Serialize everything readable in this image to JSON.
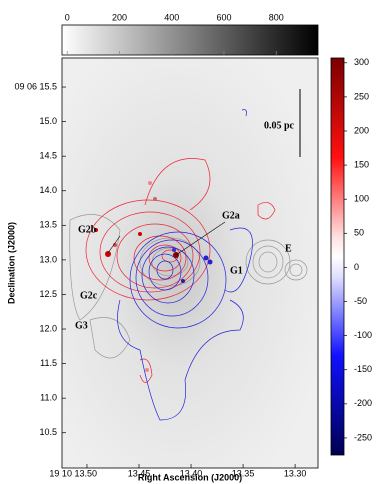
{
  "chart_data": {
    "type": "image",
    "x_label": "Right Ascension (J2000)",
    "y_label": "Declination (J2000)",
    "xlim": [
      13.524,
      13.278
    ],
    "xticks": [
      {
        "value": 13.5,
        "label": "19 10 13.50"
      },
      13.45,
      {
        "value": 13.4,
        "label": "13.40"
      },
      13.35,
      {
        "value": 13.3,
        "label": "13.30"
      }
    ],
    "ylim": [
      9.99,
      15.92
    ],
    "yticks": [
      {
        "value": 15.5,
        "label": "09 06 15.5"
      },
      {
        "value": 15,
        "label": "15.0"
      },
      14.5,
      {
        "value": 14,
        "label": "14.0"
      },
      13.5,
      {
        "value": 13,
        "label": "13.0"
      },
      12.5,
      {
        "value": 12,
        "label": "12.0"
      },
      11.5,
      {
        "value": 11,
        "label": "11.0"
      },
      10.5
    ],
    "annotations": [
      "G2b",
      "G2a",
      "G1",
      "E",
      "G2c",
      "G3"
    ],
    "scale_bar_label": "0.05 pc",
    "colorbars": [
      {
        "position": "top",
        "lim": [
          -20,
          960
        ],
        "ticks": [
          0,
          200,
          400,
          600,
          800
        ]
      },
      {
        "position": "right",
        "lim": [
          -275,
          307
        ],
        "ticks": [
          300,
          250,
          200,
          150,
          100,
          50,
          0,
          -50,
          -100,
          -150,
          -200,
          -250
        ]
      }
    ]
  }
}
